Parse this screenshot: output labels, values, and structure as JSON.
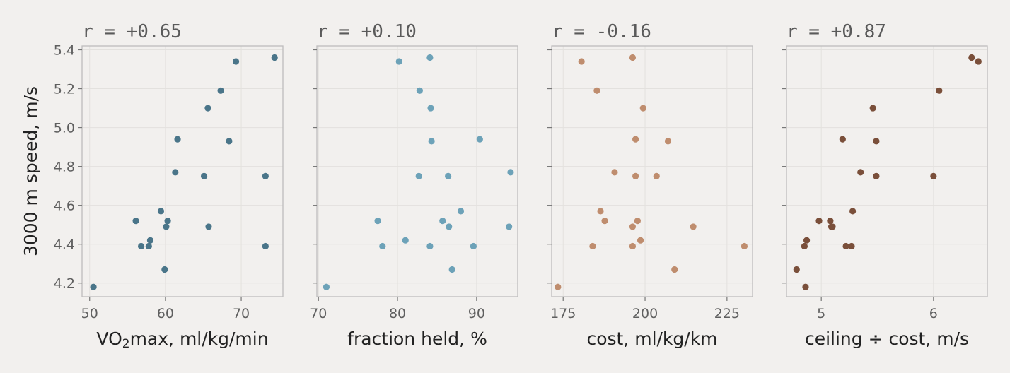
{
  "chart_data": {
    "type": "scatter",
    "ylabel": "3000 m speed, m/s",
    "ylim": [
      4.13,
      5.42
    ],
    "yticks": [
      4.2,
      4.4,
      4.6,
      4.8,
      5.0,
      5.2,
      5.4
    ],
    "ytick_labels": [
      "4.2",
      "4.4",
      "4.6",
      "4.8",
      "5.0",
      "5.2",
      "5.4"
    ],
    "y": [
      4.18,
      4.39,
      4.42,
      4.39,
      4.27,
      4.52,
      4.57,
      4.49,
      4.52,
      4.77,
      4.94,
      4.75,
      5.1,
      4.49,
      5.19,
      4.93,
      5.34,
      4.75,
      4.39,
      5.36
    ],
    "panels": [
      {
        "title": "r = +0.65",
        "xlabel_parts": [
          "VO",
          "2",
          "max, ml/kg/min"
        ],
        "xlim": [
          49,
          75.5
        ],
        "xticks": [
          50,
          60,
          70
        ],
        "xtick_labels": [
          "50",
          "60",
          "70"
        ],
        "color": "#4a7589",
        "x": [
          50.5,
          56.8,
          58.0,
          57.8,
          59.9,
          56.1,
          59.4,
          60.1,
          60.3,
          61.3,
          61.6,
          65.1,
          65.6,
          65.7,
          67.3,
          68.4,
          69.3,
          73.2,
          73.2,
          74.4
        ]
      },
      {
        "title": "r = +0.10",
        "xlabel": "fraction held, %",
        "xlim": [
          69.8,
          95.2
        ],
        "xticks": [
          70,
          80,
          90
        ],
        "xtick_labels": [
          "70",
          "80",
          "90"
        ],
        "color": "#6da2b8",
        "x": [
          71.0,
          84.1,
          81.0,
          78.1,
          86.9,
          77.5,
          88.0,
          86.5,
          85.7,
          94.3,
          90.4,
          82.7,
          84.2,
          94.1,
          82.8,
          84.3,
          80.2,
          86.4,
          89.6,
          84.1
        ]
      },
      {
        "title": "r = -0.16",
        "xlabel": "cost, ml/kg/km",
        "xlim": [
          171.5,
          232.8
        ],
        "xticks": [
          175,
          200,
          225
        ],
        "xtick_labels": [
          "175",
          "200",
          "225"
        ],
        "color": "#bf8d6e",
        "x": [
          173.4,
          196.2,
          198.6,
          184.0,
          209.0,
          187.7,
          186.4,
          196.2,
          197.7,
          190.7,
          197.1,
          203.5,
          199.4,
          214.7,
          185.3,
          207.0,
          180.6,
          197.1,
          230.3,
          196.2
        ]
      },
      {
        "title": "r = +0.87",
        "xlabel": "ceiling ÷ cost, m/s",
        "xlim": [
          4.69,
          6.48
        ],
        "xticks": [
          5,
          6
        ],
        "xtick_labels": [
          "5",
          "6"
        ],
        "color": "#7a4f3a",
        "x": [
          4.86,
          4.85,
          4.87,
          5.27,
          4.78,
          4.98,
          5.28,
          5.1,
          5.08,
          5.35,
          5.19,
          6.0,
          5.46,
          5.09,
          6.05,
          5.49,
          6.4,
          5.49,
          5.22,
          6.34
        ]
      }
    ]
  }
}
